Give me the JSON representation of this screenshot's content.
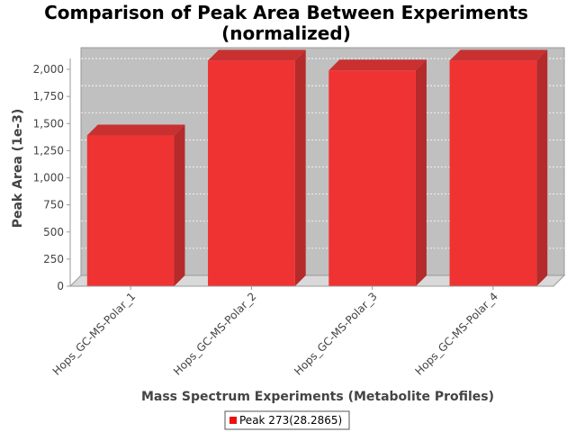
{
  "chart_data": {
    "type": "bar",
    "title": "Comparison of Peak Area Between Experiments",
    "subtitle": "(normalized)",
    "xlabel": "Mass Spectrum Experiments (Metabolite Profiles)",
    "ylabel": "Peak Area (1e-3)",
    "categories": [
      "Hops_GC-MS-Polar_1",
      "Hops_GC-MS-Polar_2",
      "Hops_GC-MS-Polar_3",
      "Hops_GC-MS-Polar_4"
    ],
    "series": [
      {
        "name": "Peak 273(28.2865)",
        "values": [
          1390,
          2080,
          1990,
          2080
        ]
      }
    ],
    "ylim": [
      0,
      2100
    ],
    "yticks": [
      0,
      250,
      500,
      750,
      1000,
      1250,
      1500,
      1750,
      2000
    ],
    "ytick_labels": [
      "0",
      "250",
      "500",
      "750",
      "1,000",
      "1,250",
      "1,500",
      "1,750",
      "2,000"
    ],
    "grid": true,
    "legend_position": "bottom",
    "style": "3d",
    "colors": {
      "bar_front": "#ef3333",
      "bar_side": "#b52a2a",
      "bar_top": "#c93030",
      "plot_back": "#c0c0c0",
      "plot_floor": "#d9d9d9",
      "gridline": "#ffffff",
      "axis": "#999999"
    }
  }
}
